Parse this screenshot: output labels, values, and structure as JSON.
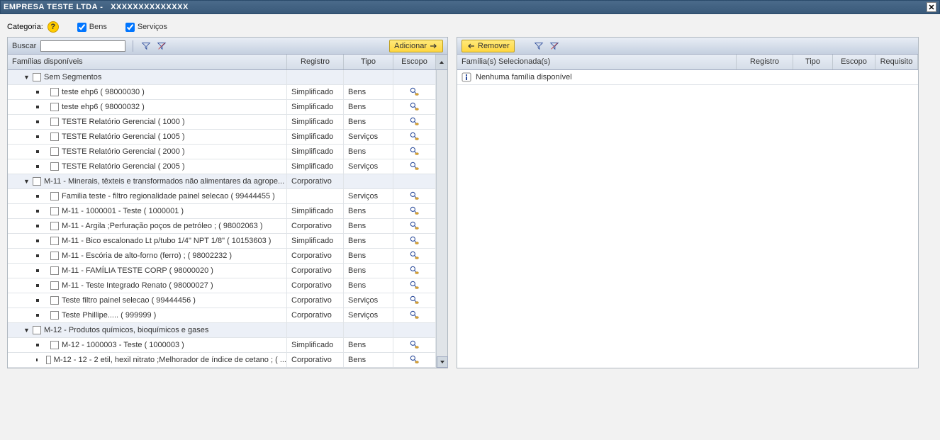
{
  "titlebar": {
    "company": "EMPRESA TESTE LTDA",
    "code": "XXXXXXXXXXXXXX"
  },
  "filter": {
    "categoria_label": "Categoria:",
    "bens_label": "Bens",
    "servicos_label": "Serviços"
  },
  "left": {
    "search_label": "Buscar",
    "add_label": "Adicionar",
    "headers": {
      "name": "Famílias disponíveis",
      "registro": "Registro",
      "tipo": "Tipo",
      "escopo": "Escopo"
    },
    "groups": [
      {
        "label": "Sem Segmentos",
        "registro": "",
        "tipo": "",
        "items": [
          {
            "label": "teste ehp6 ( 98000030 )",
            "registro": "Simplificado",
            "tipo": "Bens",
            "scope": true
          },
          {
            "label": "teste ehp6 ( 98000032 )",
            "registro": "Simplificado",
            "tipo": "Bens",
            "scope": true
          },
          {
            "label": "TESTE Relatório Gerencial ( 1000 )",
            "registro": "Simplificado",
            "tipo": "Bens",
            "scope": true
          },
          {
            "label": "TESTE Relatório Gerencial ( 1005 )",
            "registro": "Simplificado",
            "tipo": "Serviços",
            "scope": true
          },
          {
            "label": "TESTE Relatório Gerencial ( 2000 )",
            "registro": "Simplificado",
            "tipo": "Bens",
            "scope": true
          },
          {
            "label": "TESTE Relatório Gerencial ( 2005 )",
            "registro": "Simplificado",
            "tipo": "Serviços",
            "scope": true
          }
        ]
      },
      {
        "label": "M-11 - Minerais, têxteis e transformados não alimentares da agrope...",
        "registro": "Corporativo",
        "tipo": "",
        "items": [
          {
            "label": "Familia teste - filtro regionalidade painel selecao ( 99444455 )",
            "registro": "",
            "tipo": "Serviços",
            "scope": true
          },
          {
            "label": "M-11 - 1000001 - Teste ( 1000001 )",
            "registro": "Simplificado",
            "tipo": "Bens",
            "scope": true
          },
          {
            "label": "M-11 - Argila ;Perfuração poços de petróleo ; ( 98002063 )",
            "registro": "Corporativo",
            "tipo": "Bens",
            "scope": true
          },
          {
            "label": "M-11 - Bico escalonado Lt p/tubo 1/4\" NPT 1/8\" ( 10153603 )",
            "registro": "Simplificado",
            "tipo": "Bens",
            "scope": true
          },
          {
            "label": "M-11 - Escória de alto-forno (ferro) ; ( 98002232 )",
            "registro": "Corporativo",
            "tipo": "Bens",
            "scope": true
          },
          {
            "label": "M-11 - FAMÍLIA TESTE CORP ( 98000020 )",
            "registro": "Corporativo",
            "tipo": "Bens",
            "scope": true
          },
          {
            "label": "M-11 - Teste Integrado Renato ( 98000027 )",
            "registro": "Corporativo",
            "tipo": "Bens",
            "scope": true
          },
          {
            "label": "Teste filtro painel selecao ( 99444456 )",
            "registro": "Corporativo",
            "tipo": "Serviços",
            "scope": true
          },
          {
            "label": "Teste Phillipe..... ( 999999 )",
            "registro": "Corporativo",
            "tipo": "Serviços",
            "scope": true
          }
        ]
      },
      {
        "label": "M-12 - Produtos químicos, bioquímicos e gases",
        "registro": "",
        "tipo": "",
        "items": [
          {
            "label": "M-12 - 1000003 - Teste ( 1000003 )",
            "registro": "Simplificado",
            "tipo": "Bens",
            "scope": true
          },
          {
            "label": "M-12 - 12 - 2 etil, hexil nitrato ;Melhorador de índice de cetano ; ( ...",
            "registro": "Corporativo",
            "tipo": "Bens",
            "scope": true
          }
        ]
      }
    ]
  },
  "right": {
    "remove_label": "Remover",
    "headers": {
      "name": "Família(s) Selecionada(s)",
      "registro": "Registro",
      "tipo": "Tipo",
      "escopo": "Escopo",
      "requisito": "Requisito"
    },
    "empty_msg": "Nenhuma família disponível"
  },
  "colors": {
    "titlebar_bg": "#3a5a7a",
    "toolbar_bg": "#c5d0e0",
    "header_bg": "#d5dde8",
    "group_bg": "#ecf0f7",
    "btn_yellow": "#ffd740"
  }
}
